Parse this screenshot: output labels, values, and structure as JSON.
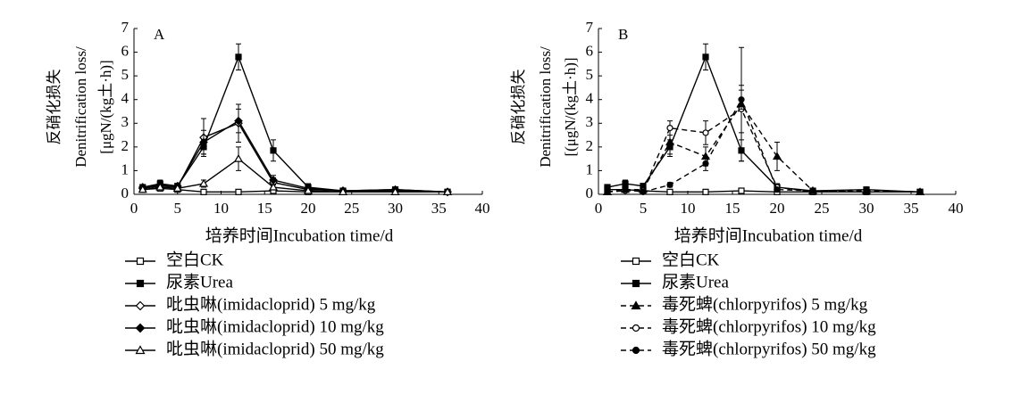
{
  "chart_data": [
    {
      "type": "line",
      "panel": "A",
      "ylabel": [
        "反硝化损失",
        "Denitrification loss/",
        "[μgN/(kg土·h)]"
      ],
      "xlabel": "培养时间Incubation time/d",
      "xlim": [
        0,
        40
      ],
      "xticks": [
        0,
        5,
        10,
        15,
        20,
        25,
        30,
        35,
        40
      ],
      "ylim": [
        0,
        7
      ],
      "yticks": [
        0,
        1,
        2,
        3,
        4,
        5,
        6,
        7
      ],
      "x": [
        1,
        3,
        5,
        8,
        12,
        16,
        20,
        24,
        30,
        36
      ],
      "series": [
        {
          "name": "空白CK",
          "color": "#000000",
          "marker": "square",
          "filled": false,
          "dashed": false,
          "values": [
            0.2,
            0.25,
            0.2,
            0.1,
            0.1,
            0.15,
            0.1,
            0.1,
            0.1,
            0.1
          ],
          "errors": [
            0.05,
            0.05,
            0.05,
            0.03,
            0.03,
            0.05,
            0.03,
            0.03,
            0.03,
            0.03
          ]
        },
        {
          "name": "尿素Urea",
          "color": "#000000",
          "marker": "square",
          "filled": true,
          "dashed": false,
          "values": [
            0.3,
            0.45,
            0.35,
            2.0,
            5.8,
            1.85,
            0.3,
            0.15,
            0.2,
            0.1
          ],
          "errors": [
            0.1,
            0.15,
            0.1,
            0.3,
            0.55,
            0.45,
            0.15,
            0.05,
            0.1,
            0.05
          ]
        },
        {
          "name": "吡虫啉(imidacloprid) 5 mg/kg",
          "color": "#000000",
          "marker": "diamond",
          "filled": false,
          "dashed": false,
          "values": [
            0.25,
            0.35,
            0.3,
            2.4,
            3.0,
            0.5,
            0.2,
            0.15,
            0.15,
            0.1
          ],
          "errors": [
            0.1,
            0.1,
            0.1,
            0.8,
            0.8,
            0.2,
            0.1,
            0.05,
            0.05,
            0.05
          ]
        },
        {
          "name": "吡虫啉(imidacloprid) 10 mg/kg",
          "color": "#000000",
          "marker": "diamond",
          "filled": true,
          "dashed": false,
          "values": [
            0.3,
            0.4,
            0.35,
            2.2,
            3.1,
            0.6,
            0.25,
            0.15,
            0.2,
            0.1
          ],
          "errors": [
            0.1,
            0.1,
            0.1,
            0.5,
            0.5,
            0.2,
            0.1,
            0.05,
            0.1,
            0.05
          ]
        },
        {
          "name": "吡虫啉(imidacloprid) 50 mg/kg",
          "color": "#000000",
          "marker": "triangle",
          "filled": false,
          "dashed": false,
          "values": [
            0.2,
            0.3,
            0.25,
            0.45,
            1.5,
            0.3,
            0.15,
            0.1,
            0.1,
            0.1
          ],
          "errors": [
            0.05,
            0.1,
            0.05,
            0.15,
            0.5,
            0.1,
            0.05,
            0.03,
            0.03,
            0.03
          ]
        }
      ]
    },
    {
      "type": "line",
      "panel": "B",
      "ylabel": [
        "反硝化损失",
        "Denitrification loss/",
        "[(μgN/(kg土·h)]"
      ],
      "xlabel": "培养时间Incubation time/d",
      "xlim": [
        0,
        40
      ],
      "xticks": [
        0,
        5,
        10,
        15,
        20,
        25,
        30,
        35,
        40
      ],
      "ylim": [
        0,
        7
      ],
      "yticks": [
        0,
        1,
        2,
        3,
        4,
        5,
        6,
        7
      ],
      "x": [
        1,
        3,
        5,
        8,
        12,
        16,
        20,
        24,
        30,
        36
      ],
      "series": [
        {
          "name": "空白CK",
          "color": "#000000",
          "marker": "square",
          "filled": false,
          "dashed": false,
          "values": [
            0.2,
            0.2,
            0.15,
            0.1,
            0.1,
            0.15,
            0.1,
            0.1,
            0.1,
            0.1
          ],
          "errors": [
            0.05,
            0.05,
            0.05,
            0.03,
            0.03,
            0.05,
            0.03,
            0.03,
            0.03,
            0.03
          ]
        },
        {
          "name": "尿素Urea",
          "color": "#000000",
          "marker": "square",
          "filled": true,
          "dashed": false,
          "values": [
            0.3,
            0.45,
            0.35,
            2.0,
            5.8,
            1.85,
            0.3,
            0.15,
            0.2,
            0.1
          ],
          "errors": [
            0.1,
            0.15,
            0.1,
            0.3,
            0.55,
            0.45,
            0.15,
            0.05,
            0.1,
            0.05
          ]
        },
        {
          "name": "毒死蜱(chlorpyrifos) 5 mg/kg",
          "color": "#000000",
          "marker": "triangle",
          "filled": true,
          "dashed": true,
          "values": [
            0.1,
            0.2,
            0.2,
            2.2,
            1.6,
            3.8,
            1.6,
            0.15,
            0.15,
            0.1
          ],
          "errors": [
            0.05,
            0.1,
            0.1,
            0.6,
            0.4,
            2.4,
            0.6,
            0.05,
            0.05,
            0.05
          ]
        },
        {
          "name": "毒死蜱(chlorpyrifos) 10 mg/kg",
          "color": "#000000",
          "marker": "circle",
          "filled": false,
          "dashed": true,
          "values": [
            0.1,
            0.15,
            0.15,
            2.8,
            2.6,
            3.6,
            0.3,
            0.1,
            0.1,
            0.1
          ],
          "errors": [
            0.05,
            0.05,
            0.05,
            0.3,
            0.5,
            1.0,
            0.1,
            0.03,
            0.03,
            0.03
          ]
        },
        {
          "name": "毒死蜱(chlorpyrifos) 50 mg/kg",
          "color": "#000000",
          "marker": "circle",
          "filled": true,
          "dashed": true,
          "values": [
            0.1,
            0.2,
            0.1,
            0.4,
            1.3,
            4.0,
            0.2,
            0.15,
            0.1,
            0.1
          ],
          "errors": [
            0.05,
            0.05,
            0.05,
            0.1,
            0.3,
            0.4,
            0.1,
            0.05,
            0.05,
            0.05
          ]
        }
      ]
    }
  ]
}
